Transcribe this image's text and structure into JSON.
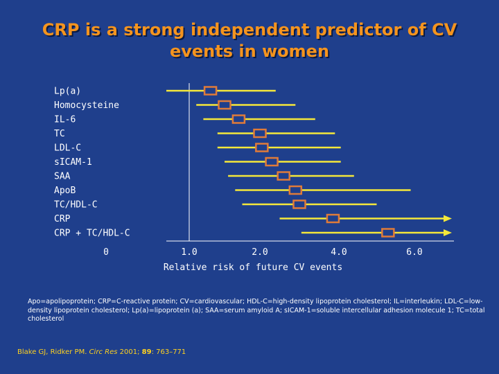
{
  "title": {
    "line1": "CRP is a strong independent predictor of CV",
    "line2": "events in women"
  },
  "colors": {
    "background": "#1f3f8c",
    "title": "#f5941e",
    "bar": "#f5e83a",
    "marker": "#e07b39",
    "axis": "#ffffff",
    "citation": "#ffd21f"
  },
  "chart_data": {
    "type": "forest",
    "xlabel": "Relative risk of future CV events",
    "x_ticks": [
      {
        "label": "0",
        "value": 0
      },
      {
        "label": "1.0",
        "value": 1.0
      },
      {
        "label": "2.0",
        "value": 2.0
      },
      {
        "label": "4.0",
        "value": 4.0
      },
      {
        "label": "6.0",
        "value": 6.0
      }
    ],
    "rows": [
      {
        "label": "Lp(a)",
        "estimate": 1.3,
        "low": 0.7,
        "high": 2.4,
        "arrow": false
      },
      {
        "label": "Homocysteine",
        "estimate": 1.5,
        "low": 1.1,
        "high": 2.9,
        "arrow": false
      },
      {
        "label": "IL-6",
        "estimate": 1.7,
        "low": 1.2,
        "high": 3.4,
        "arrow": false
      },
      {
        "label": "TC",
        "estimate": 2.0,
        "low": 1.4,
        "high": 3.9,
        "arrow": false
      },
      {
        "label": "LDL-C",
        "estimate": 2.05,
        "low": 1.4,
        "high": 4.05,
        "arrow": false
      },
      {
        "label": "sICAM-1",
        "estimate": 2.3,
        "low": 1.5,
        "high": 4.05,
        "arrow": false
      },
      {
        "label": "SAA",
        "estimate": 2.6,
        "low": 1.55,
        "high": 4.4,
        "arrow": false
      },
      {
        "label": "ApoB",
        "estimate": 2.9,
        "low": 1.65,
        "high": 5.9,
        "arrow": false
      },
      {
        "label": "TC/HDL-C",
        "estimate": 3.0,
        "low": 1.75,
        "high": 5.0,
        "arrow": false
      },
      {
        "label": "CRP",
        "estimate": 3.85,
        "low": 2.5,
        "high": 7.2,
        "arrow": true
      },
      {
        "label": "CRP + TC/HDL-C",
        "estimate": 5.3,
        "low": 3.05,
        "high": 7.2,
        "arrow": true
      }
    ]
  },
  "footnote": "Apo=apolipoprotein; CRP=C-reactive protein; CV=cardiovascular; HDL-C=high-density lipoprotein cholesterol; IL=interleukin; LDL-C=low-density lipoprotein cholesterol; Lp(a)=lipoprotein (a); SAA=serum amyloid A; sICAM-1=soluble intercellular adhesion molecule 1; TC=total cholesterol",
  "citation": {
    "authors": "Blake GJ, Ridker PM.",
    "journal": "Circ Res",
    "year": "2001;",
    "volume": "89",
    "pages": ": 763–771"
  }
}
